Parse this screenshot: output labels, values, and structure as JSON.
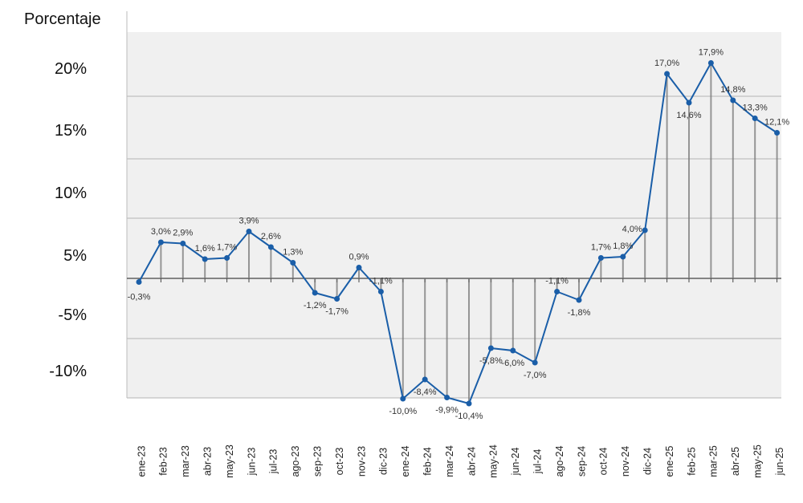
{
  "chart_data": {
    "type": "line",
    "ylabel": "Porcentaje",
    "y_tick_labels": [
      "20%",
      "15%",
      "10%",
      "5%",
      "-5%",
      "-10%"
    ],
    "categories": [
      "ene-23",
      "feb-23",
      "mar-23",
      "abr-23",
      "may-23",
      "jun-23",
      "jul-23",
      "ago-23",
      "sep-23",
      "oct-23",
      "nov-23",
      "dic-23",
      "ene-24",
      "feb-24",
      "mar-24",
      "abr-24",
      "may-24",
      "jun-24",
      "jul-24",
      "ago-24",
      "sep-24",
      "oct-24",
      "nov-24",
      "dic-24",
      "ene-25",
      "feb-25",
      "mar-25",
      "abr-25",
      "may-25",
      "jun-25"
    ],
    "series": [
      {
        "values": [
          -0.3,
          3.0,
          2.9,
          1.6,
          1.7,
          3.9,
          2.6,
          1.3,
          -1.2,
          -1.7,
          0.9,
          -1.1,
          -10.0,
          -8.4,
          -9.9,
          -10.4,
          -5.8,
          -6.0,
          -7.0,
          -1.1,
          -1.8,
          1.7,
          1.8,
          4.0,
          17.0,
          14.6,
          17.9,
          14.8,
          13.3,
          12.1
        ],
        "data_labels": [
          "-0,3%",
          "3,0%",
          "2,9%",
          "1,6%",
          "1,7%",
          "3,9%",
          "2,6%",
          "1,3%",
          "-1,2%",
          "-1,7%",
          "0,9%",
          "-1,1%",
          "-10,0%",
          "-8,4%",
          "-9,9%",
          "-10,4%",
          "-5,8%",
          "-6,0%",
          "-7,0%",
          "-1,1%",
          "-1,8%",
          "1,7%",
          "1,8%",
          "4,0%",
          "17,0%",
          "14,6%",
          "17,9%",
          "14,8%",
          "13,3%",
          "12,1%"
        ],
        "color": "#1a5ea8"
      }
    ],
    "grid": true,
    "background_color": "#f0f0f0",
    "drop_line_color": "#777777"
  }
}
